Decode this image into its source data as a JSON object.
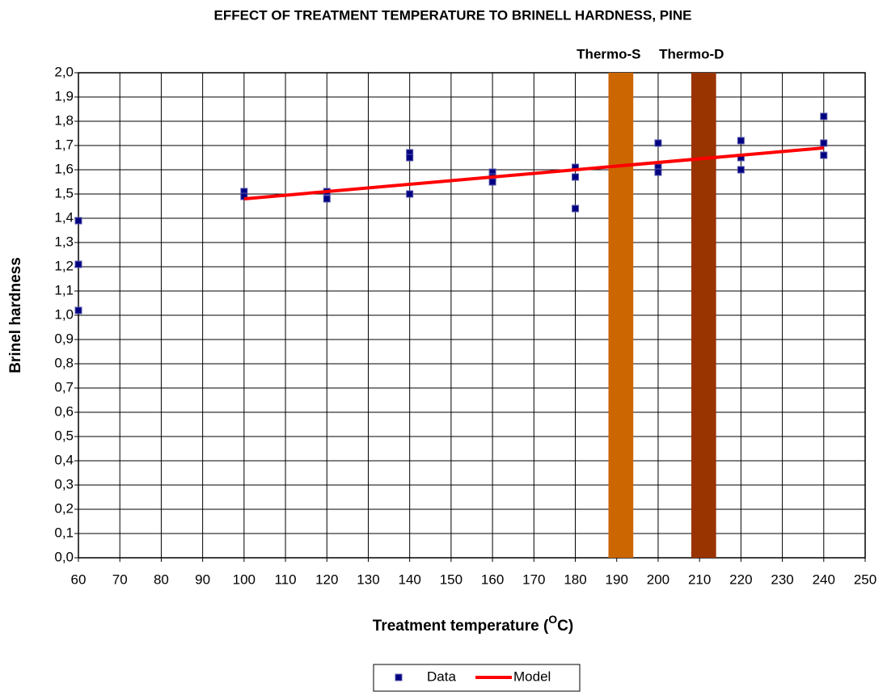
{
  "chart_data": {
    "type": "scatter",
    "title": "EFFECT OF TREATMENT TEMPERATURE TO BRINELL HARDNESS, PINE",
    "xlabel": [
      "Treatment temperature (",
      "O",
      "C)"
    ],
    "ylabel": "Brinel hardness",
    "xlim": [
      60,
      250
    ],
    "xticks": [
      60,
      70,
      80,
      90,
      100,
      110,
      120,
      130,
      140,
      150,
      160,
      170,
      180,
      190,
      200,
      210,
      220,
      230,
      240,
      250
    ],
    "ylim": [
      0,
      2
    ],
    "yticks": [
      {
        "value": 0,
        "label": "0,0"
      },
      {
        "value": 0.1,
        "label": "0,1"
      },
      {
        "value": 0.2,
        "label": "0,2"
      },
      {
        "value": 0.3,
        "label": "0,3"
      },
      {
        "value": 0.4,
        "label": "0,4"
      },
      {
        "value": 0.5,
        "label": "0,5"
      },
      {
        "value": 0.6,
        "label": "0,6"
      },
      {
        "value": 0.7,
        "label": "0,7"
      },
      {
        "value": 0.8,
        "label": "0,8"
      },
      {
        "value": 0.9,
        "label": "0,9"
      },
      {
        "value": 1.0,
        "label": "1,0"
      },
      {
        "value": 1.1,
        "label": "1,1"
      },
      {
        "value": 1.2,
        "label": "1,2"
      },
      {
        "value": 1.3,
        "label": "1,3"
      },
      {
        "value": 1.4,
        "label": "1,4"
      },
      {
        "value": 1.5,
        "label": "1,5"
      },
      {
        "value": 1.6,
        "label": "1,6"
      },
      {
        "value": 1.7,
        "label": "1,7"
      },
      {
        "value": 1.8,
        "label": "1,8"
      },
      {
        "value": 1.9,
        "label": "1,9"
      },
      {
        "value": 2.0,
        "label": "2,0"
      }
    ],
    "grid": true,
    "legend": "bottom",
    "series": [
      {
        "name": "Data",
        "color": "#000080",
        "x": [
          60,
          60,
          60,
          100,
          100,
          120,
          120,
          140,
          140,
          140,
          160,
          160,
          160,
          180,
          180,
          180,
          200,
          200,
          200,
          220,
          220,
          220,
          240,
          240,
          240
        ],
        "values": [
          1.39,
          1.21,
          1.02,
          1.51,
          1.49,
          1.51,
          1.48,
          1.67,
          1.65,
          1.5,
          1.59,
          1.57,
          1.55,
          1.61,
          1.57,
          1.44,
          1.71,
          1.61,
          1.59,
          1.72,
          1.65,
          1.6,
          1.82,
          1.71,
          1.66
        ]
      },
      {
        "name": "Model",
        "color": "#ff0000",
        "x": [
          100,
          240
        ],
        "values": [
          1.48,
          1.69
        ]
      }
    ],
    "bands": [
      {
        "label": "Thermo-S",
        "x": [
          188,
          194
        ],
        "color": "#cc6600"
      },
      {
        "label": "Thermo-D",
        "x": [
          208,
          214
        ],
        "color": "#993300"
      }
    ]
  }
}
